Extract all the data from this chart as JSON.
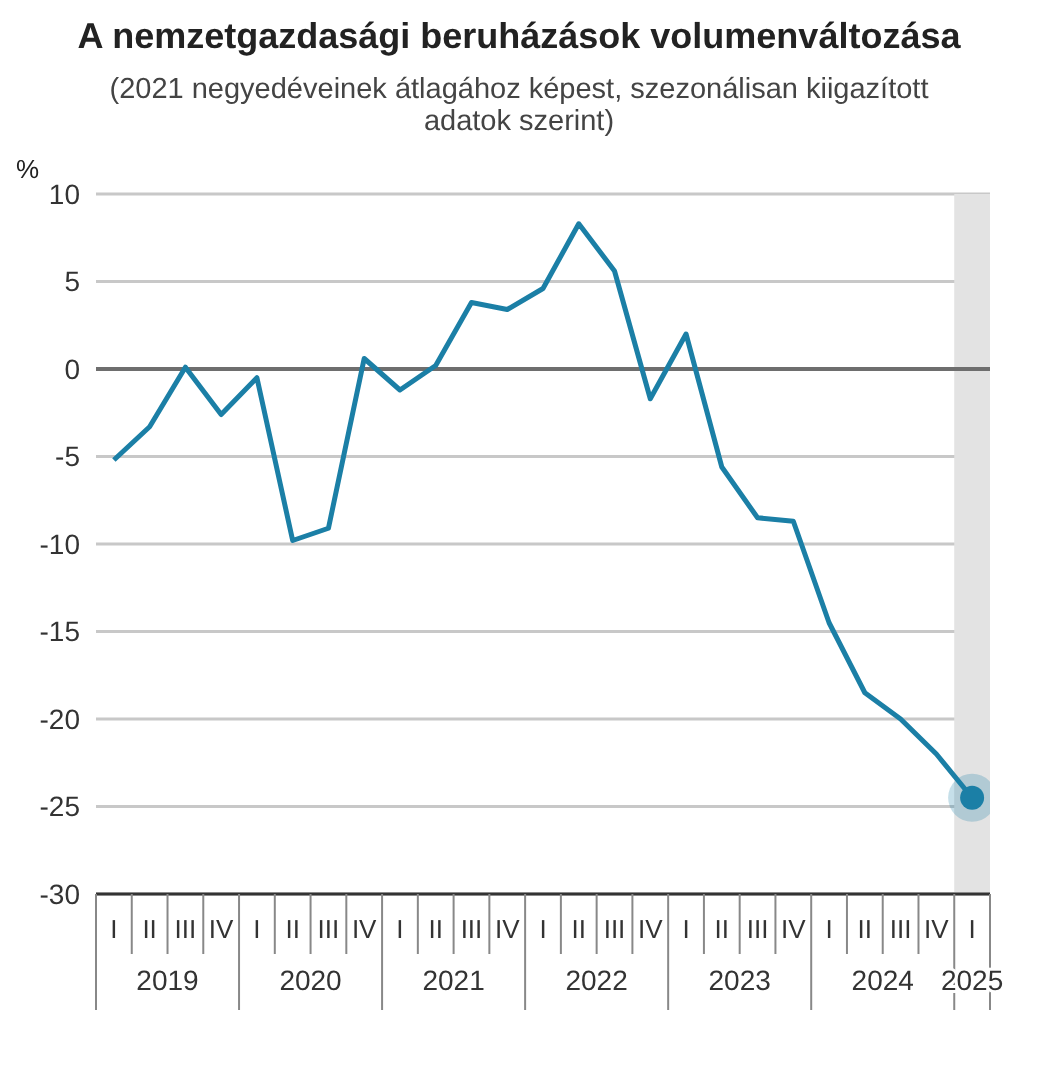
{
  "chart_data": {
    "type": "line",
    "title": "A nemzetgazdasági beruházások volumenváltozása",
    "subtitle": "(2021 negyedéveinek átlagához képest, szezonálisan kiigazított adatok szerint)",
    "ylabel": "%",
    "categories": [
      "I",
      "II",
      "III",
      "IV",
      "I",
      "II",
      "III",
      "IV",
      "I",
      "II",
      "III",
      "IV",
      "I",
      "II",
      "III",
      "IV",
      "I",
      "II",
      "III",
      "IV",
      "I",
      "II",
      "III",
      "IV",
      "I"
    ],
    "series": [
      {
        "color": "#1b7fa6",
        "values": [
          -5.2,
          -3.3,
          0.1,
          -2.6,
          -0.5,
          -9.8,
          -9.1,
          0.6,
          -1.2,
          0.2,
          3.8,
          3.4,
          4.6,
          8.3,
          5.6,
          -1.7,
          2.0,
          -5.6,
          -8.5,
          -8.7,
          -14.5,
          -18.5,
          -20.0,
          -22.0,
          -24.5
        ]
      }
    ],
    "annotations": [
      "2019",
      "2020",
      "2021",
      "2022",
      "2023",
      "2024",
      "2025"
    ],
    "ylim": [
      -30,
      10
    ],
    "yticks": [
      -30,
      -25,
      -20,
      -15,
      -10,
      -5,
      0,
      5,
      10
    ],
    "grid": "y",
    "marker": "none",
    "line_style": "solid",
    "legend": false,
    "ref_lines": [
      {
        "axis": "y",
        "value": 0,
        "color": "#6e6e6e"
      }
    ]
  }
}
